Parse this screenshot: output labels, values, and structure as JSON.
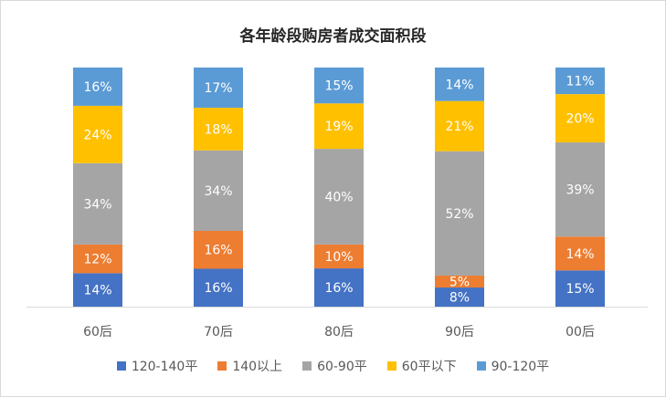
{
  "chart_data": {
    "type": "bar",
    "stacked": true,
    "title": "各年龄段购房者成交面积段",
    "categories": [
      "60后",
      "70后",
      "80后",
      "90后",
      "00后"
    ],
    "series": [
      {
        "name": "120-140平",
        "color": "#4472c4",
        "label_color": "#ffffff",
        "values": [
          14,
          16,
          16,
          8,
          15
        ]
      },
      {
        "name": "140以上",
        "color": "#ed7d31",
        "label_color": "#ffffff",
        "values": [
          12,
          16,
          10,
          5,
          14
        ]
      },
      {
        "name": "60-90平",
        "color": "#a5a5a5",
        "label_color": "#ffffff",
        "values": [
          34,
          34,
          40,
          52,
          39
        ]
      },
      {
        "name": "60平以下",
        "color": "#ffc000",
        "label_color": "#ffffff",
        "values": [
          24,
          18,
          19,
          21,
          20
        ]
      },
      {
        "name": "90-120平",
        "color": "#5b9bd5",
        "label_color": "#ffffff",
        "values": [
          16,
          17,
          15,
          14,
          11
        ]
      }
    ],
    "value_suffix": "%",
    "legend_position": "bottom",
    "grid": false,
    "ylim": [
      0,
      100
    ]
  }
}
